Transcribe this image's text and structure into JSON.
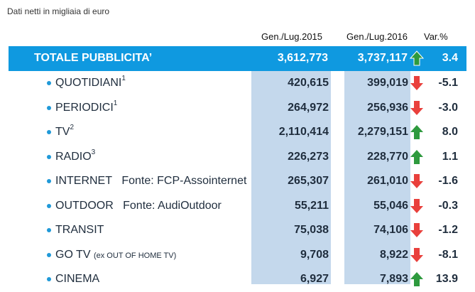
{
  "note": "Dati netti in migliaia di euro",
  "headers": {
    "col2015": "Gen./Lug.2015",
    "col2016": "Gen./Lug.2016",
    "var": "Var.%"
  },
  "colors": {
    "header_bar": "#0f99e0",
    "column_shade": "#c4d8ec",
    "up": "#2e9a3e",
    "down": "#e9403c"
  },
  "total": {
    "label": "TOTALE PUBBLICITA’",
    "v2015": "3,612,773",
    "v2016": "3,737,117",
    "trend": "up",
    "var": "3.4"
  },
  "rows": [
    {
      "label": "QUOTIDIANI",
      "sup": "1",
      "source": "",
      "note": "",
      "v2015": "420,615",
      "v2016": "399,019",
      "trend": "down",
      "var": "-5.1"
    },
    {
      "label": "PERIODICI",
      "sup": "1",
      "source": "",
      "note": "",
      "v2015": "264,972",
      "v2016": "256,936",
      "trend": "down",
      "var": "-3.0"
    },
    {
      "label": "TV",
      "sup": "2",
      "source": "",
      "note": "",
      "v2015": "2,110,414",
      "v2016": "2,279,151",
      "trend": "up",
      "var": "8.0"
    },
    {
      "label": "RADIO",
      "sup": "3",
      "source": "",
      "note": "",
      "v2015": "226,273",
      "v2016": "228,770",
      "trend": "up",
      "var": "1.1"
    },
    {
      "label": "INTERNET",
      "sup": "",
      "source": "Fonte: FCP-Assointernet",
      "note": "",
      "v2015": "265,307",
      "v2016": "261,010",
      "trend": "down",
      "var": "-1.6"
    },
    {
      "label": "OUTDOOR",
      "sup": "",
      "source": "Fonte: AudiOutdoor",
      "note": "",
      "v2015": "55,211",
      "v2016": "55,046",
      "trend": "down",
      "var": "-0.3"
    },
    {
      "label": "TRANSIT",
      "sup": "",
      "source": "",
      "note": "",
      "v2015": "75,038",
      "v2016": "74,106",
      "trend": "down",
      "var": "-1.2"
    },
    {
      "label": "GO TV",
      "sup": "",
      "source": "",
      "note": "(ex OUT OF HOME TV)",
      "v2015": "9,708",
      "v2016": "8,922",
      "trend": "down",
      "var": "-8.1"
    },
    {
      "label": "CINEMA",
      "sup": "",
      "source": "",
      "note": "",
      "v2015": "6,927",
      "v2016": "7,893",
      "trend": "up",
      "var": "13.9"
    }
  ]
}
